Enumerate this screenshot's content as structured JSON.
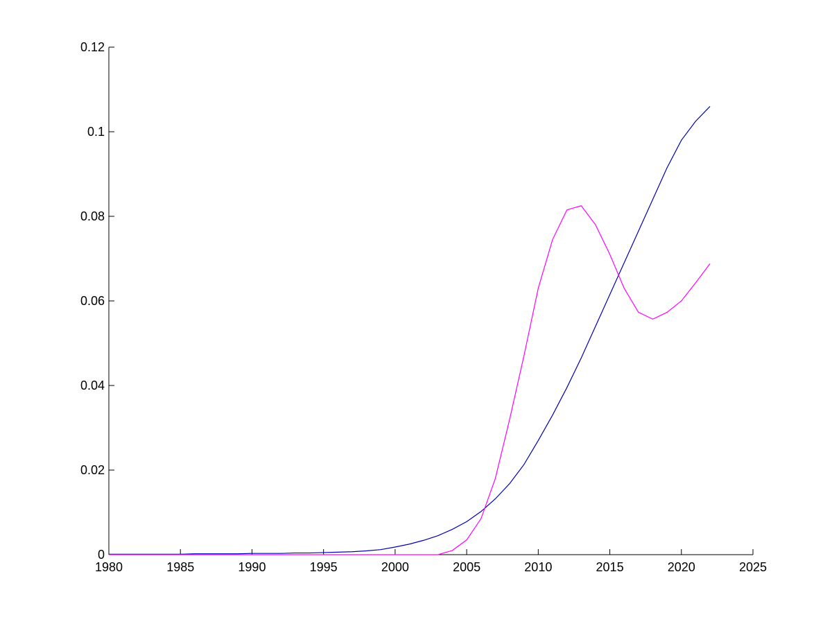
{
  "chart_data": {
    "type": "line",
    "x": [
      1980,
      1981,
      1982,
      1983,
      1984,
      1985,
      1986,
      1987,
      1988,
      1989,
      1990,
      1991,
      1992,
      1993,
      1994,
      1995,
      1996,
      1997,
      1998,
      1999,
      2000,
      2001,
      2002,
      2003,
      2004,
      2005,
      2006,
      2007,
      2008,
      2009,
      2010,
      2011,
      2012,
      2013,
      2014,
      2015,
      2016,
      2017,
      2018,
      2019,
      2020,
      2021,
      2022
    ],
    "series": [
      {
        "color": "#0000b0",
        "values": [
          0.0001,
          0.0001,
          0.0001,
          0.0001,
          0.0001,
          0.0001,
          0.0002,
          0.0002,
          0.0002,
          0.0002,
          0.0003,
          0.0003,
          0.0003,
          0.0004,
          0.0004,
          0.0005,
          0.0006,
          0.0007,
          0.0009,
          0.0012,
          0.0018,
          0.0025,
          0.0034,
          0.0045,
          0.006,
          0.0078,
          0.0102,
          0.0132,
          0.0168,
          0.0213,
          0.027,
          0.033,
          0.0395,
          0.0465,
          0.054,
          0.0615,
          0.069,
          0.0765,
          0.084,
          0.0915,
          0.098,
          0.1025,
          0.106
        ]
      },
      {
        "color": "#ff00ff",
        "values": [
          0,
          0,
          0,
          0,
          0,
          0,
          0,
          0,
          0,
          0,
          0,
          0,
          0,
          0,
          0,
          0,
          0,
          0,
          0,
          0,
          0,
          0,
          0,
          0,
          0.001,
          0.0035,
          0.0085,
          0.018,
          0.032,
          0.047,
          0.063,
          0.0745,
          0.0815,
          0.0825,
          0.078,
          0.071,
          0.063,
          0.0573,
          0.0557,
          0.0573,
          0.06,
          0.0643,
          0.0688
        ]
      }
    ],
    "xlim": [
      1980,
      2025
    ],
    "xticks": [
      1980,
      1985,
      1990,
      1995,
      2000,
      2005,
      2010,
      2015,
      2020,
      2025
    ],
    "ylim": [
      0,
      0.12
    ],
    "yticks": [
      0,
      0.02,
      0.04,
      0.06,
      0.08,
      0.1,
      0.12
    ]
  }
}
